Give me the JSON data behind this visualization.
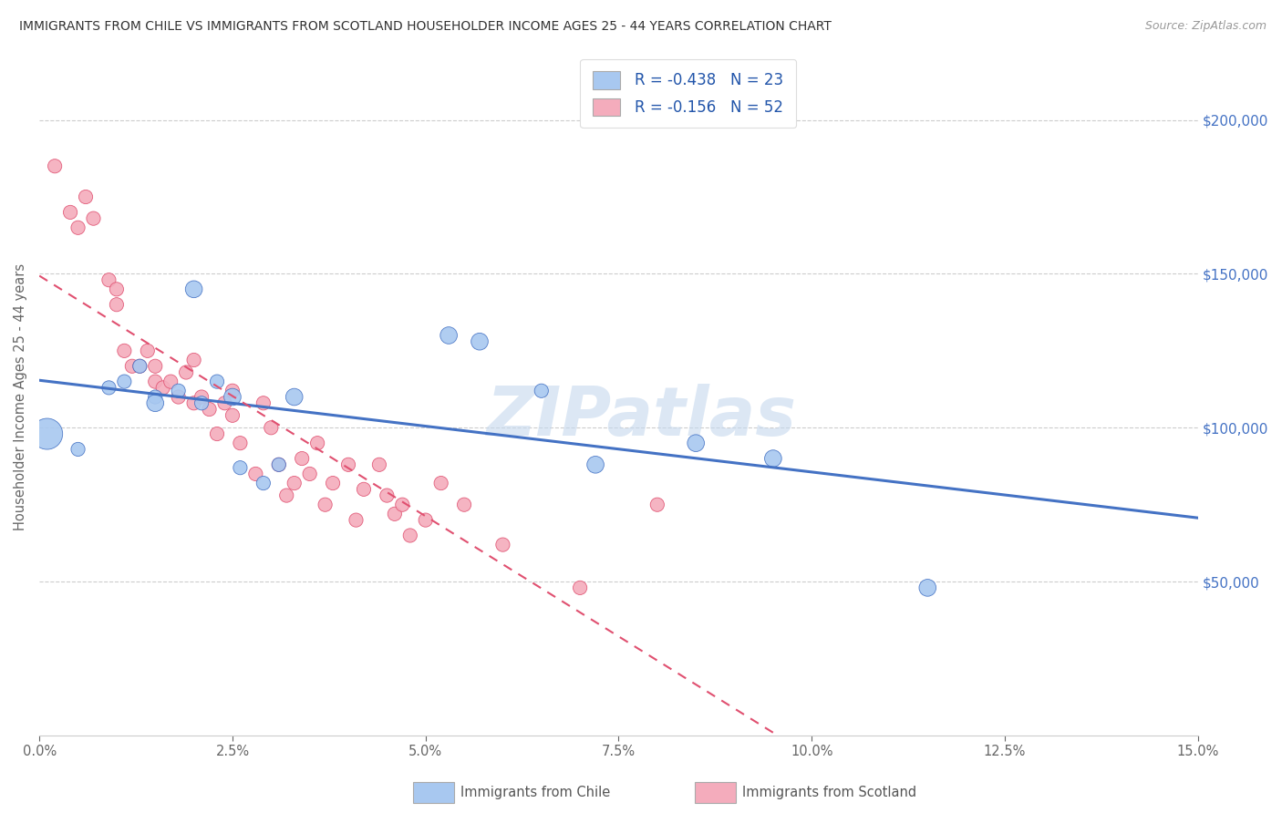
{
  "title": "IMMIGRANTS FROM CHILE VS IMMIGRANTS FROM SCOTLAND HOUSEHOLDER INCOME AGES 25 - 44 YEARS CORRELATION CHART",
  "source": "Source: ZipAtlas.com",
  "ylabel": "Householder Income Ages 25 - 44 years",
  "xlim": [
    0.0,
    15.0
  ],
  "ylim": [
    0,
    220000
  ],
  "chile_color": "#A8C8F0",
  "chile_color_line": "#4472C4",
  "scotland_color": "#F4ACBC",
  "scotland_color_line": "#E05070",
  "chile_R": -0.438,
  "chile_N": 23,
  "scotland_R": -0.156,
  "scotland_N": 52,
  "watermark": "ZIPatlas",
  "chile_scatter_x": [
    0.1,
    0.5,
    0.9,
    1.1,
    1.3,
    1.5,
    1.5,
    1.8,
    2.0,
    2.1,
    2.3,
    2.5,
    2.6,
    2.9,
    3.1,
    3.3,
    5.3,
    5.7,
    6.5,
    7.2,
    8.5,
    9.5,
    11.5
  ],
  "chile_scatter_y": [
    98000,
    93000,
    113000,
    115000,
    120000,
    110000,
    108000,
    112000,
    145000,
    108000,
    115000,
    110000,
    87000,
    82000,
    88000,
    110000,
    130000,
    128000,
    112000,
    88000,
    95000,
    90000,
    48000
  ],
  "chile_scatter_sizes": [
    600,
    120,
    120,
    120,
    120,
    120,
    180,
    120,
    180,
    120,
    120,
    180,
    120,
    120,
    120,
    180,
    180,
    180,
    120,
    180,
    180,
    180,
    180
  ],
  "scotland_scatter_x": [
    0.2,
    0.4,
    0.5,
    0.6,
    0.7,
    0.9,
    1.0,
    1.0,
    1.1,
    1.2,
    1.3,
    1.4,
    1.5,
    1.5,
    1.6,
    1.7,
    1.8,
    1.9,
    2.0,
    2.0,
    2.1,
    2.2,
    2.3,
    2.4,
    2.5,
    2.5,
    2.6,
    2.8,
    2.9,
    3.0,
    3.1,
    3.2,
    3.3,
    3.4,
    3.5,
    3.6,
    3.7,
    3.8,
    4.0,
    4.1,
    4.2,
    4.4,
    4.5,
    4.6,
    4.7,
    4.8,
    5.0,
    5.2,
    5.5,
    6.0,
    7.0,
    8.0
  ],
  "scotland_scatter_y": [
    185000,
    170000,
    165000,
    175000,
    168000,
    148000,
    145000,
    140000,
    125000,
    120000,
    120000,
    125000,
    120000,
    115000,
    113000,
    115000,
    110000,
    118000,
    108000,
    122000,
    110000,
    106000,
    98000,
    108000,
    112000,
    104000,
    95000,
    85000,
    108000,
    100000,
    88000,
    78000,
    82000,
    90000,
    85000,
    95000,
    75000,
    82000,
    88000,
    70000,
    80000,
    88000,
    78000,
    72000,
    75000,
    65000,
    70000,
    82000,
    75000,
    62000,
    48000,
    75000
  ],
  "scotland_scatter_sizes": [
    120,
    120,
    120,
    120,
    120,
    120,
    120,
    120,
    120,
    120,
    120,
    120,
    120,
    120,
    120,
    120,
    120,
    120,
    120,
    120,
    120,
    120,
    120,
    120,
    120,
    120,
    120,
    120,
    120,
    120,
    120,
    120,
    120,
    120,
    120,
    120,
    120,
    120,
    120,
    120,
    120,
    120,
    120,
    120,
    120,
    120,
    120,
    120,
    120,
    120,
    120,
    120
  ]
}
